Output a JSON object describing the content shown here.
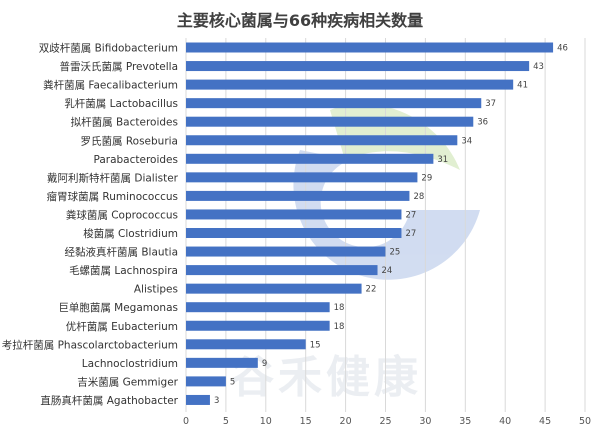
{
  "chart_data": {
    "type": "bar",
    "orientation": "horizontal",
    "title": "主要核心菌属与66种疾病相关数量",
    "categories": [
      "双歧杆菌属 Bifidobacterium",
      "普雷沃氏菌属 Prevotella",
      "粪杆菌属 Faecalibacterium",
      "乳杆菌属 Lactobacillus",
      "拟杆菌属 Bacteroides",
      "罗氏菌属 Roseburia",
      "Parabacteroides",
      "戴阿利斯特杆菌属 Dialister",
      "瘤胃球菌属 Ruminococcus",
      "粪球菌属 Coprococcus",
      "梭菌属 Clostridium",
      "经黏液真杆菌属 Blautia",
      "毛螺菌属 Lachnospira",
      "Alistipes",
      "巨单胞菌属 Megamonas",
      "优杆菌属 Eubacterium",
      "考拉杆菌属 Phascolarctobacterium",
      "Lachnoclostridium",
      "吉米菌属 Gemmiger",
      "直肠真杆菌属 Agathobacter"
    ],
    "values": [
      46,
      43,
      41,
      37,
      36,
      34,
      31,
      29,
      28,
      27,
      27,
      25,
      24,
      22,
      18,
      18,
      15,
      9,
      5,
      3
    ],
    "xlim": [
      0,
      50
    ],
    "xticks": [
      0,
      5,
      10,
      15,
      20,
      25,
      30,
      35,
      40,
      45,
      50
    ],
    "grid": true,
    "bar_color": "#4472c4",
    "watermark": "谷禾健康"
  }
}
